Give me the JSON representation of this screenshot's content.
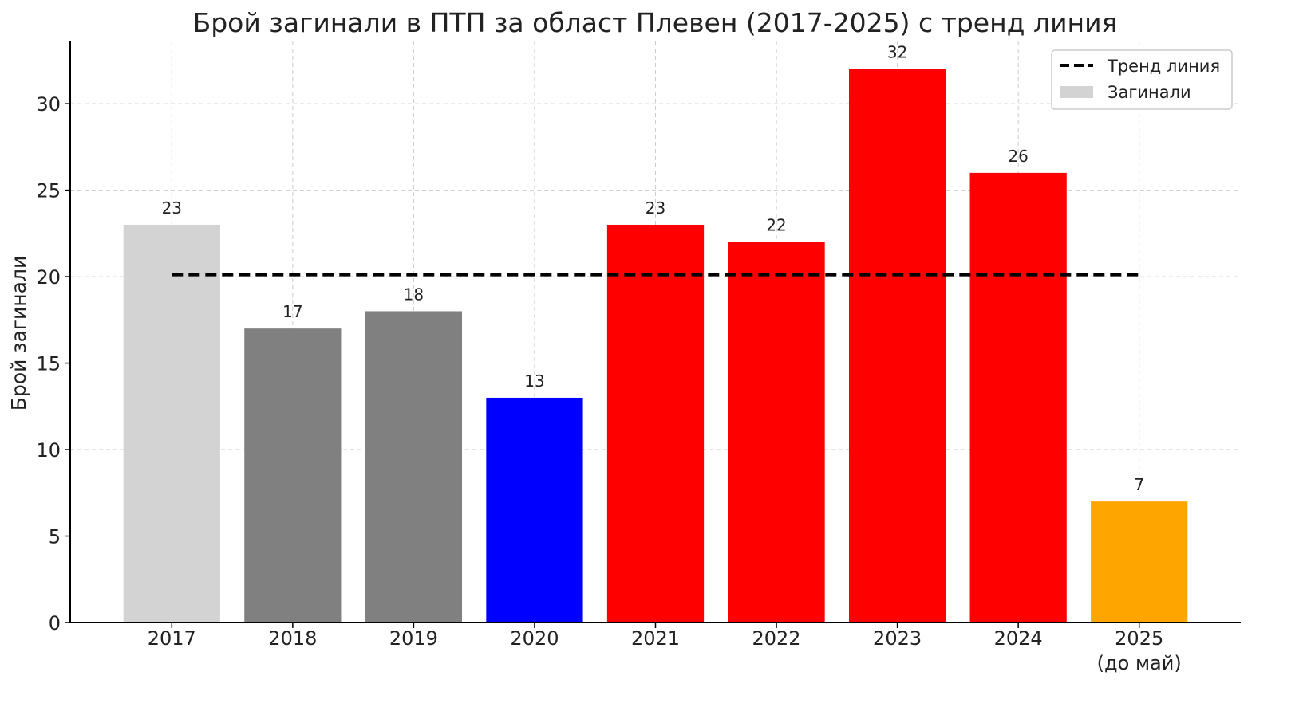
{
  "chart_data": {
    "type": "bar",
    "title": "Брой загинали в ПТП за област Плевен (2017-2025) с тренд линия",
    "xlabel": "",
    "ylabel": "Брой загинали",
    "categories": [
      "2017",
      "2018",
      "2019",
      "2020",
      "2021",
      "2022",
      "2023",
      "2024",
      "2025\n(до май)"
    ],
    "category_lines": [
      [
        "2017"
      ],
      [
        "2018"
      ],
      [
        "2019"
      ],
      [
        "2020"
      ],
      [
        "2021"
      ],
      [
        "2022"
      ],
      [
        "2023"
      ],
      [
        "2024"
      ],
      [
        "2025",
        "(до май)"
      ]
    ],
    "values": [
      23,
      17,
      18,
      13,
      23,
      22,
      32,
      26,
      7
    ],
    "bar_colors": [
      "#d3d3d3",
      "#808080",
      "#808080",
      "#0000ff",
      "#ff0000",
      "#ff0000",
      "#ff0000",
      "#ff0000",
      "#ffa500"
    ],
    "trend": {
      "name": "Тренд линия",
      "value": 20.11,
      "color": "#000000",
      "style": "dashed"
    },
    "ylim": [
      0,
      33.6
    ],
    "yticks": [
      0,
      5,
      10,
      15,
      20,
      25,
      30
    ],
    "grid": true,
    "legend": {
      "placement": "top-right",
      "entries": [
        {
          "label": "Тренд линия",
          "kind": "dashed-line",
          "color": "#000000"
        },
        {
          "label": "Загинали",
          "kind": "patch",
          "color": "#d3d3d3"
        }
      ]
    }
  }
}
